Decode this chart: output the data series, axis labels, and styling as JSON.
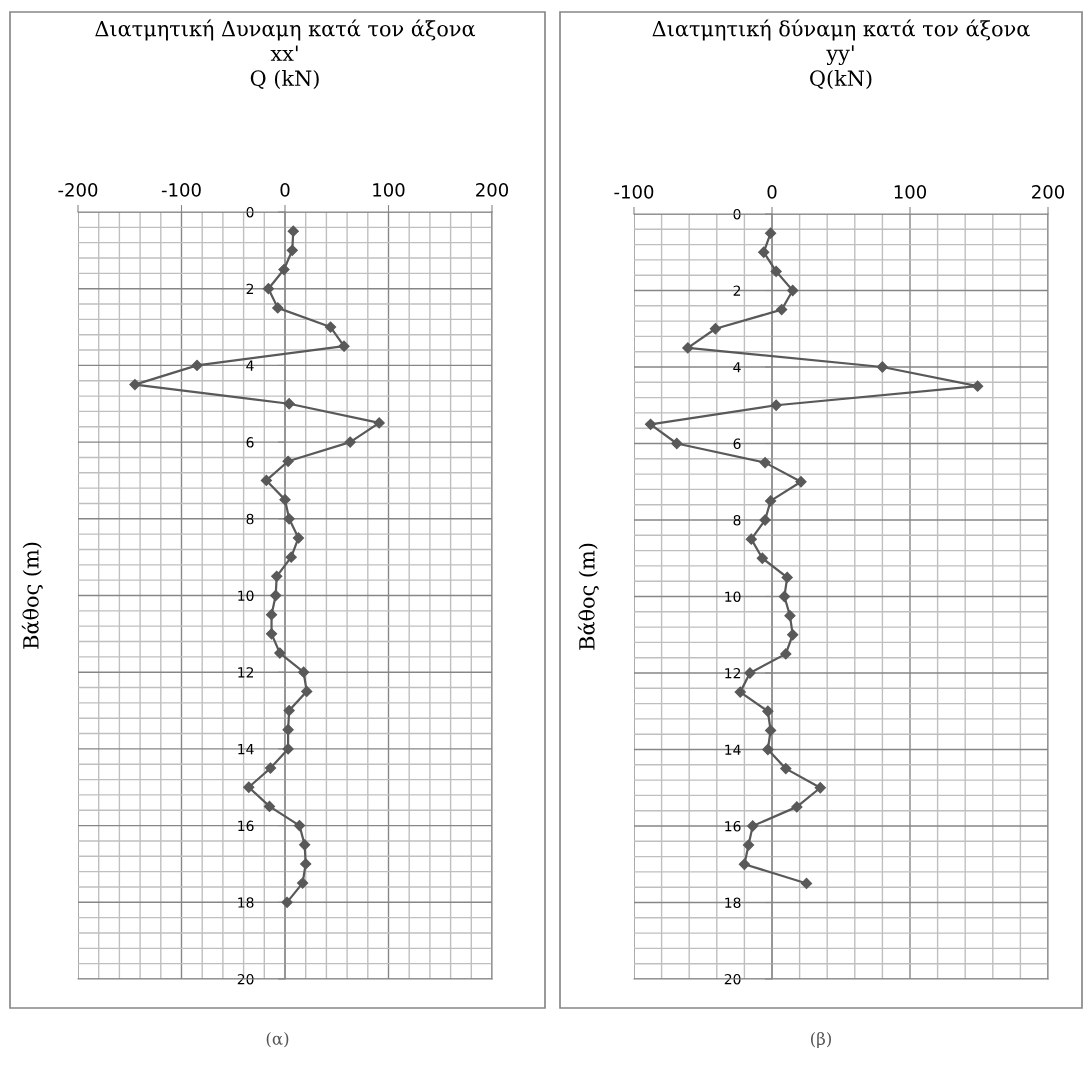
{
  "chart_data": [
    {
      "type": "line",
      "title": "Διατμητική Δυναμη κατά τον άξονα xx'",
      "xlabel": "Q (kN)",
      "ylabel": "Βάθος (m)",
      "series": [
        {
          "color": "#595959",
          "x": [
            8,
            7,
            -1,
            -16,
            -7,
            44,
            57,
            -85,
            -145,
            4,
            91,
            63,
            3,
            -18,
            0,
            4,
            13,
            6,
            -8,
            -9,
            -13,
            -13,
            -5,
            18,
            21,
            4,
            3,
            3,
            -14,
            -35,
            -15,
            14,
            19,
            20,
            17,
            2
          ],
          "values": [
            0.5,
            1,
            1.5,
            2,
            2.5,
            3,
            3.5,
            4,
            4.5,
            5,
            5.5,
            6,
            6.5,
            7,
            7.5,
            8,
            8.5,
            9,
            9.5,
            10,
            10.5,
            11,
            11.5,
            12,
            12.5,
            13,
            13.5,
            14,
            14.5,
            15,
            15.5,
            16,
            16.5,
            17,
            17.5,
            18
          ]
        }
      ],
      "xlim": [
        -200,
        200
      ],
      "xticks": [
        -200,
        -100,
        0,
        100,
        200
      ],
      "ylim": [
        20,
        0
      ],
      "yticks": [
        0,
        2,
        4,
        6,
        8,
        10,
        12,
        14,
        16,
        18,
        20
      ],
      "grid": true,
      "marker": "diamond",
      "line_style": "solid",
      "annotations": [
        "(α)"
      ]
    },
    {
      "type": "line",
      "title": "Διατμητική δύναμη κατά τον άξονα yy'",
      "xlabel": "Q(kN)",
      "ylabel": "Βάθος (m)",
      "series": [
        {
          "color": "#595959",
          "x": [
            -1,
            -6,
            3,
            15,
            7,
            -41,
            -61,
            80,
            149,
            3,
            -88,
            -69,
            -5,
            21,
            -1,
            -5,
            -15,
            -7,
            11,
            9,
            13,
            15,
            10,
            -16,
            -23,
            -3,
            -1,
            -3,
            10,
            35,
            18,
            -14,
            -17,
            -20,
            25
          ],
          "values": [
            0.5,
            1,
            1.5,
            2,
            2.5,
            3,
            3.5,
            4,
            4.5,
            5,
            5.5,
            6,
            6.5,
            7,
            7.5,
            8,
            8.5,
            9,
            9.5,
            10,
            10.5,
            11,
            11.5,
            12,
            12.5,
            13,
            13.5,
            14,
            14.5,
            15,
            15.5,
            16,
            16.5,
            17,
            17.5
          ]
        }
      ],
      "xlim": [
        -100,
        200
      ],
      "xticks": [
        -100,
        0,
        100,
        200
      ],
      "ylim": [
        20,
        0
      ],
      "yticks": [
        0,
        2,
        4,
        6,
        8,
        10,
        12,
        14,
        16,
        18,
        20
      ],
      "grid": true,
      "marker": "diamond",
      "line_style": "solid",
      "annotations": [
        "(β)"
      ]
    }
  ]
}
